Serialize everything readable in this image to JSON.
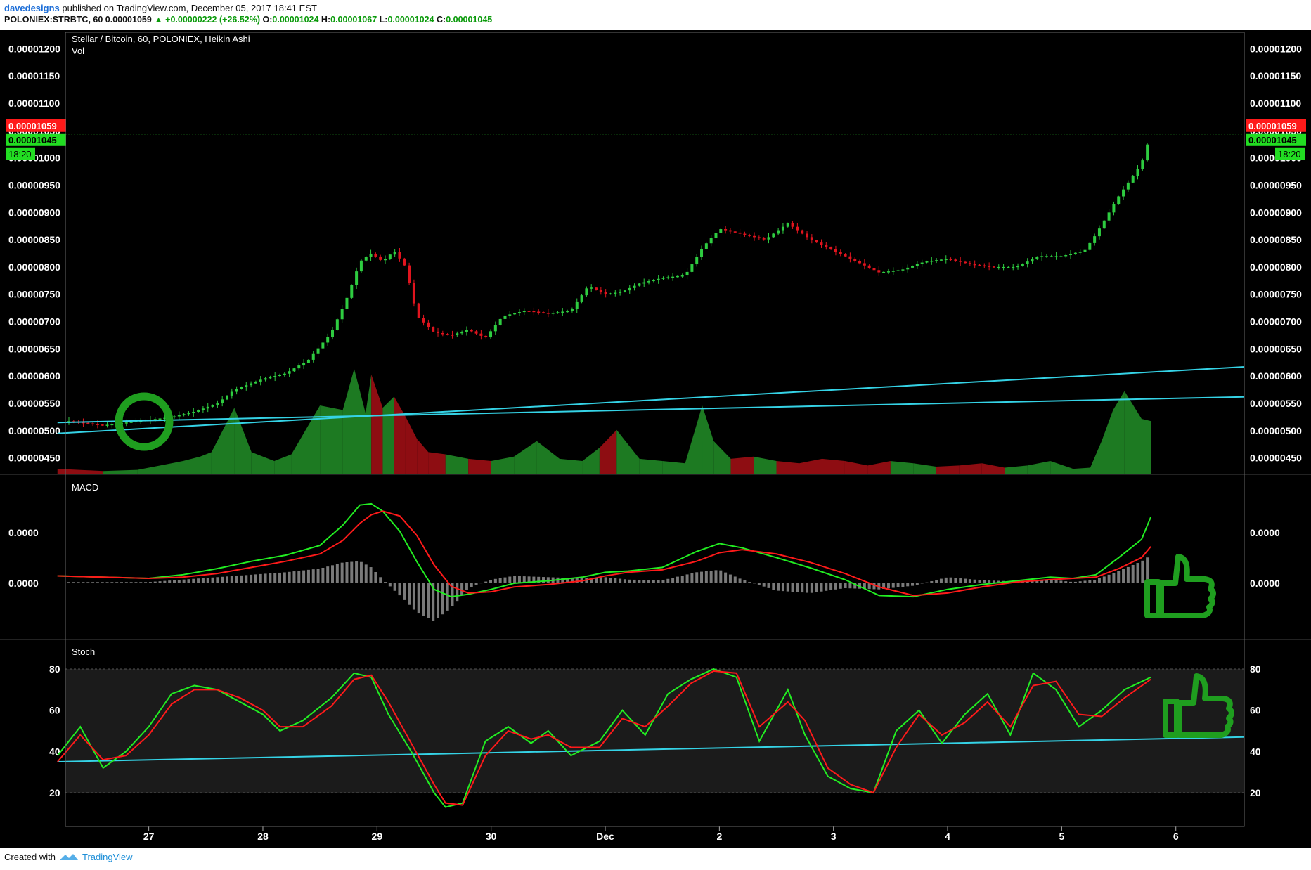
{
  "header": {
    "author": "davedesigns",
    "published_text": "published on TradingView.com, December 05, 2017 18:41 EST",
    "symbol": "POLONIEX:STRBTC, 60",
    "last": "0.00001059",
    "change": "+0.00000222 (+26.52%)",
    "o_label": "O:",
    "o": "0.00001024",
    "h_label": "H:",
    "h": "0.00001067",
    "l_label": "L:",
    "l": "0.00001024",
    "c_label": "C:",
    "c": "0.00001045"
  },
  "footer": {
    "created_with": "Created with",
    "brand": "TradingView"
  },
  "colors": {
    "background": "#000000",
    "up": "#2ecc40",
    "down": "#e0141e",
    "trendline": "#35d3e6",
    "vol_up": "#1d7a22",
    "vol_down": "#8e0d12",
    "macd_line": "#22ee22",
    "signal_line": "#ff1a1a",
    "histogram": "#7a7a7a",
    "annotation": "#1f9e1f"
  },
  "chart_data": [
    {
      "type": "candlestick",
      "title": "Stellar / Bitcoin, 60, POLONIEX, Heikin Ashi",
      "sub_label": "Vol",
      "ylim": [
        4.2e-06,
        1.23e-05
      ],
      "y_ticks": [
        "0.00001200",
        "0.00001150",
        "0.00001100",
        "0.00001050",
        "0.00001000",
        "0.00000950",
        "0.00000900",
        "0.00000850",
        "0.00000800",
        "0.00000750",
        "0.00000700",
        "0.00000650",
        "0.00000600",
        "0.00000550",
        "0.00000500",
        "0.00000450"
      ],
      "price_badge_last": "0.00001059",
      "price_badge_close": "0.00001045",
      "countdown": "18:20",
      "x_tick_labels": [
        "27",
        "28",
        "29",
        "30",
        "Dec",
        "2",
        "3",
        "4",
        "5",
        "6"
      ],
      "close_path_x": [
        26.2,
        26.4,
        26.6,
        26.8,
        27.0,
        27.2,
        27.4,
        27.6,
        27.75,
        28.0,
        28.2,
        28.4,
        28.6,
        28.75,
        28.85,
        28.95,
        29.05,
        29.15,
        29.25,
        29.35,
        29.5,
        29.65,
        29.8,
        29.95,
        30.1,
        30.3,
        30.5,
        30.7,
        30.85,
        31.0,
        31.15,
        31.3,
        31.5,
        31.7,
        31.85,
        32.0,
        32.2,
        32.4,
        32.6,
        32.8,
        33.0,
        33.2,
        33.4,
        33.6,
        33.8,
        34.0,
        34.2,
        34.4,
        34.6,
        34.8,
        35.0,
        35.1,
        35.2,
        35.3,
        35.4,
        35.5,
        35.6,
        35.7,
        35.78
      ],
      "close_path_y": [
        5.2,
        5.15,
        5.1,
        5.15,
        5.2,
        5.25,
        5.35,
        5.5,
        5.75,
        5.95,
        6.05,
        6.3,
        6.8,
        7.5,
        8.1,
        8.25,
        8.1,
        8.3,
        8.0,
        7.1,
        6.8,
        6.75,
        6.85,
        6.7,
        7.1,
        7.2,
        7.15,
        7.2,
        7.65,
        7.5,
        7.55,
        7.7,
        7.8,
        7.85,
        8.35,
        8.7,
        8.6,
        8.5,
        8.8,
        8.5,
        8.3,
        8.1,
        7.9,
        7.95,
        8.1,
        8.15,
        8.05,
        8.0,
        8.0,
        8.2,
        8.2,
        8.25,
        8.3,
        8.6,
        8.95,
        9.3,
        9.6,
        9.9,
        10.45
      ],
      "volume_x": [
        26.2,
        26.6,
        26.9,
        27.3,
        27.45,
        27.55,
        27.75,
        27.9,
        28.1,
        28.25,
        28.5,
        28.7,
        28.8,
        28.9,
        28.95,
        29.05,
        29.15,
        29.25,
        29.35,
        29.45,
        29.6,
        29.8,
        30.0,
        30.2,
        30.4,
        30.6,
        30.8,
        30.95,
        31.1,
        31.3,
        31.5,
        31.7,
        31.85,
        31.95,
        32.1,
        32.3,
        32.5,
        32.7,
        32.9,
        33.1,
        33.3,
        33.5,
        33.7,
        33.9,
        34.1,
        34.3,
        34.5,
        34.7,
        34.9,
        35.1,
        35.25,
        35.35,
        35.45,
        35.55,
        35.7,
        35.78
      ],
      "volume_rel": [
        0.05,
        0.03,
        0.04,
        0.12,
        0.16,
        0.2,
        0.6,
        0.2,
        0.12,
        0.18,
        0.62,
        0.58,
        0.95,
        0.55,
        0.9,
        0.6,
        0.7,
        0.52,
        0.32,
        0.2,
        0.18,
        0.14,
        0.12,
        0.16,
        0.3,
        0.14,
        0.12,
        0.24,
        0.4,
        0.14,
        0.12,
        0.1,
        0.62,
        0.3,
        0.14,
        0.16,
        0.12,
        0.1,
        0.14,
        0.12,
        0.08,
        0.12,
        0.1,
        0.07,
        0.08,
        0.1,
        0.06,
        0.08,
        0.12,
        0.05,
        0.06,
        0.3,
        0.58,
        0.75,
        0.5,
        0.48
      ],
      "rising_trendline": {
        "x": [
          26.2,
          36.6
        ],
        "y": [
          4.95e-06,
          6.17e-06
        ]
      },
      "flat_trendline": {
        "x": [
          26.2,
          36.6
        ],
        "y": [
          5.15e-06,
          5.62e-06
        ]
      }
    },
    {
      "type": "line",
      "title": "MACD",
      "y_ticks": [
        "0.0000",
        "0.0000"
      ],
      "x": [
        26.2,
        26.6,
        27.0,
        27.3,
        27.6,
        27.9,
        28.2,
        28.5,
        28.7,
        28.85,
        28.95,
        29.05,
        29.2,
        29.35,
        29.5,
        29.65,
        29.8,
        30.0,
        30.2,
        30.5,
        30.8,
        31.0,
        31.2,
        31.5,
        31.8,
        32.0,
        32.2,
        32.5,
        32.8,
        33.1,
        33.4,
        33.7,
        34.0,
        34.3,
        34.6,
        34.9,
        35.1,
        35.3,
        35.5,
        35.7,
        35.78
      ],
      "series": [
        {
          "values": [
            0.12,
            0.1,
            0.08,
            0.14,
            0.24,
            0.36,
            0.46,
            0.62,
            0.95,
            1.28,
            1.3,
            1.18,
            0.85,
            0.35,
            -0.1,
            -0.22,
            -0.18,
            -0.1,
            0.0,
            0.04,
            0.1,
            0.18,
            0.2,
            0.26,
            0.52,
            0.65,
            0.58,
            0.42,
            0.25,
            0.06,
            -0.2,
            -0.22,
            -0.1,
            -0.02,
            0.04,
            0.1,
            0.08,
            0.14,
            0.42,
            0.72,
            1.08
          ]
        },
        {
          "values": [
            0.12,
            0.1,
            0.08,
            0.1,
            0.16,
            0.26,
            0.36,
            0.48,
            0.7,
            0.98,
            1.12,
            1.18,
            1.1,
            0.78,
            0.3,
            -0.05,
            -0.16,
            -0.14,
            -0.06,
            -0.02,
            0.04,
            0.12,
            0.18,
            0.22,
            0.36,
            0.5,
            0.55,
            0.48,
            0.34,
            0.16,
            -0.06,
            -0.2,
            -0.16,
            -0.06,
            0.02,
            0.06,
            0.08,
            0.1,
            0.24,
            0.42,
            0.6
          ]
        },
        {
          "values": [
            0.02,
            0.02,
            0.02,
            0.06,
            0.1,
            0.14,
            0.18,
            0.24,
            0.34,
            0.36,
            0.26,
            0.06,
            -0.2,
            -0.48,
            -0.62,
            -0.4,
            -0.08,
            0.06,
            0.12,
            0.1,
            0.08,
            0.1,
            0.06,
            0.05,
            0.18,
            0.22,
            0.06,
            -0.12,
            -0.16,
            -0.08,
            -0.1,
            -0.04,
            0.1,
            0.05,
            0.03,
            0.06,
            0.02,
            0.06,
            0.2,
            0.36,
            0.46
          ]
        }
      ]
    },
    {
      "type": "line",
      "title": "Stoch",
      "ylim": [
        0,
        88
      ],
      "y_ticks": [
        "80",
        "60",
        "40",
        "20"
      ],
      "x": [
        26.2,
        26.4,
        26.6,
        26.8,
        27.0,
        27.2,
        27.4,
        27.6,
        27.8,
        28.0,
        28.15,
        28.35,
        28.6,
        28.8,
        28.95,
        29.1,
        29.3,
        29.5,
        29.6,
        29.75,
        29.95,
        30.15,
        30.35,
        30.5,
        30.7,
        30.95,
        31.15,
        31.35,
        31.55,
        31.75,
        31.95,
        32.15,
        32.35,
        32.6,
        32.75,
        32.95,
        33.15,
        33.35,
        33.55,
        33.75,
        33.95,
        34.15,
        34.35,
        34.55,
        34.75,
        34.95,
        35.15,
        35.35,
        35.55,
        35.78
      ],
      "series": [
        {
          "values": [
            38,
            52,
            32,
            40,
            52,
            68,
            72,
            70,
            64,
            58,
            50,
            55,
            66,
            78,
            76,
            58,
            40,
            20,
            13,
            15,
            45,
            52,
            44,
            50,
            38,
            45,
            60,
            48,
            68,
            75,
            80,
            76,
            45,
            70,
            48,
            28,
            22,
            20,
            50,
            60,
            44,
            58,
            68,
            48,
            78,
            70,
            52,
            60,
            70,
            76
          ]
        },
        {
          "values": [
            35,
            48,
            36,
            38,
            48,
            63,
            70,
            70,
            66,
            60,
            52,
            52,
            62,
            75,
            77,
            64,
            44,
            24,
            15,
            14,
            38,
            50,
            46,
            48,
            42,
            42,
            56,
            52,
            62,
            73,
            79,
            78,
            52,
            64,
            55,
            32,
            24,
            20,
            42,
            58,
            48,
            54,
            64,
            52,
            72,
            74,
            58,
            57,
            66,
            75
          ]
        }
      ],
      "trendline": {
        "x": [
          26.2,
          36.6
        ],
        "y": [
          35,
          47
        ]
      }
    }
  ]
}
